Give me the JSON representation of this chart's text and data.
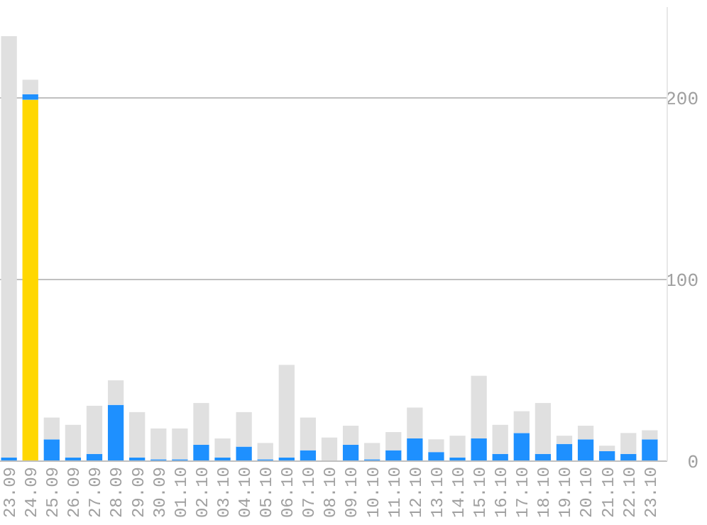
{
  "chart_data": {
    "type": "bar",
    "stacked": true,
    "categories": [
      "23.09",
      "24.09",
      "25.09",
      "26.09",
      "27.09",
      "28.09",
      "29.09",
      "30.09",
      "01.10",
      "02.10",
      "03.10",
      "04.10",
      "05.10",
      "06.10",
      "07.10",
      "08.10",
      "09.10",
      "10.10",
      "11.10",
      "12.10",
      "13.10",
      "14.10",
      "15.10",
      "16.10",
      "17.10",
      "18.10",
      "19.10",
      "20.10",
      "21.10",
      "22.10",
      "23.10"
    ],
    "series": [
      {
        "color": "#ffd700",
        "values": [
          0,
          199,
          0,
          0,
          0,
          0,
          0,
          0,
          0,
          0,
          0,
          0,
          0,
          0,
          0,
          0,
          0,
          0,
          0,
          0,
          0,
          0,
          0,
          0,
          0,
          0,
          0,
          0,
          0,
          0,
          0
        ]
      },
      {
        "color": "#1e90ff",
        "values": [
          2,
          3,
          12,
          2,
          4,
          31,
          2,
          1,
          1,
          9,
          2,
          8,
          1,
          2,
          6,
          0,
          9,
          1,
          6,
          12.5,
          5,
          2,
          12.5,
          4,
          15.5,
          4,
          9.5,
          12,
          5.5,
          4,
          12
        ]
      },
      {
        "color": "#e0e0e0",
        "values": [
          232,
          8,
          12,
          18,
          26.5,
          13.5,
          25,
          17,
          17,
          23,
          10.5,
          19,
          9,
          51,
          18,
          13,
          10.5,
          9,
          10,
          17,
          7,
          12,
          34.5,
          16,
          12,
          28,
          4.5,
          7.5,
          3,
          11.5,
          5
        ]
      }
    ],
    "ylim": [
      0,
      250
    ],
    "yticks": [
      0,
      100,
      200
    ],
    "grid": "y"
  }
}
